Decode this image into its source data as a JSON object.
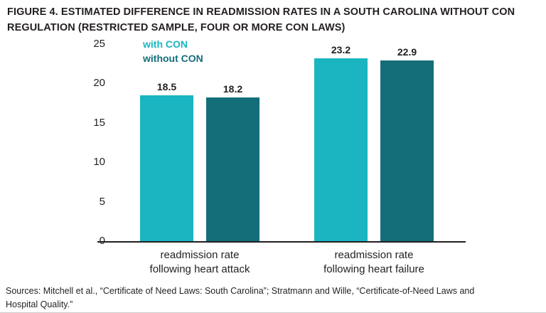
{
  "title": [
    "FIGURE 4. ESTIMATED DIFFERENCE IN READMISSION RATES IN A SOUTH CAROLINA WITHOUT CON",
    "REGULATION (RESTRICTED SAMPLE, FOUR OR MORE CON LAWS)"
  ],
  "legend": [
    "with CON",
    "without CON"
  ],
  "sources": [
    "Sources: Mitchell et al., “Certificate of Need Laws: South Carolina”; Stratmann and Wille, “Certificate-of-Need Laws and",
    "Hospital Quality.”"
  ],
  "colors": {
    "with_con": "#1ab5c1",
    "without_con": "#136e79",
    "axis": "#231f20",
    "text": "#231f20"
  },
  "chart_data": {
    "type": "bar",
    "categories": [
      "readmission rate\nfollowing heart attack",
      "readmission rate\nfollowing heart failure"
    ],
    "series": [
      {
        "name": "with CON",
        "color": "#1ab5c1",
        "values": [
          18.5,
          23.2
        ]
      },
      {
        "name": "without CON",
        "color": "#136e79",
        "values": [
          18.2,
          22.9
        ]
      }
    ],
    "ylim": [
      0,
      25
    ],
    "yticks": [
      0,
      5,
      10,
      15,
      20,
      25
    ],
    "grid": false,
    "legend_position": "top-left",
    "xlabel": "",
    "ylabel": ""
  }
}
